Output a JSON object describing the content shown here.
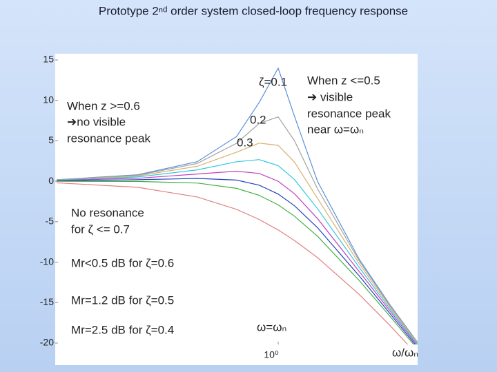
{
  "chart_data": {
    "type": "line",
    "title": "Prototype 2ⁿᵈ order system closed-loop frequency response",
    "x": [
      0.15,
      0.3,
      0.5,
      0.7,
      0.85,
      1,
      1.15,
      1.4,
      2,
      2.6,
      3.3
    ],
    "log_x": true,
    "xlim": [
      0.15,
      3.3
    ],
    "xticks": [
      {
        "value": 1,
        "label": "10⁰"
      }
    ],
    "ylim": [
      -20,
      15
    ],
    "yticks": [
      -20,
      -15,
      -10,
      -5,
      0,
      5,
      10,
      15
    ],
    "grid": false,
    "series": [
      {
        "color": "#5a8fd8",
        "values": [
          0.19,
          0.8,
          2.42,
          5.53,
          9.75,
          13.98,
          8.04,
          0.0,
          -9.62,
          -15.24,
          -19.92
        ]
      },
      {
        "color": "#a0a0a0",
        "values": [
          0.18,
          0.74,
          2.2,
          4.7,
          7.15,
          7.96,
          5.01,
          -0.92,
          -9.84,
          -15.35,
          -19.98
        ]
      },
      {
        "color": "#d8b070",
        "values": [
          0.16,
          0.65,
          1.85,
          3.6,
          4.72,
          4.44,
          2.37,
          -2.11,
          -10.19,
          -15.52,
          -20.07
        ]
      },
      {
        "color": "#30c8e0",
        "values": [
          0.13,
          0.53,
          1.41,
          2.41,
          2.68,
          1.94,
          0.22,
          -3.38,
          -10.63,
          -15.74,
          -20.2
        ]
      },
      {
        "color": "#c040c0",
        "values": [
          0.1,
          0.37,
          0.9,
          1.25,
          0.97,
          0.0,
          -1.54,
          -4.6,
          -11.14,
          -16.01,
          -20.36
        ]
      },
      {
        "color": "#2040c0",
        "values": [
          0.05,
          0.19,
          0.35,
          0.15,
          -0.48,
          -1.58,
          -3.03,
          -5.73,
          -11.69,
          -16.33,
          -20.55
        ]
      },
      {
        "color": "#40b040",
        "values": [
          0.0,
          -0.02,
          -0.22,
          -0.87,
          -1.74,
          -2.92,
          -4.31,
          -6.78,
          -12.26,
          -16.67,
          -20.76
        ]
      },
      {
        "color": "#e08080",
        "values": [
          -0.19,
          -0.75,
          -1.94,
          -3.46,
          -4.72,
          -6.02,
          -7.32,
          -9.43,
          -13.98,
          -17.8,
          -21.5
        ]
      }
    ],
    "annotations": [
      "ζ=0.1",
      "0.2",
      "0.3",
      "When z >=0.6",
      "➔no visible",
      "resonance peak",
      "When z <=0.5",
      "➔ visible",
      "resonance peak",
      "near ω=ωₙ",
      "No resonance",
      "for ζ <= 0.7",
      "Mr<0.5 dB for ζ=0.6",
      "Mr=1.2 dB for ζ=0.5",
      "Mr=2.5 dB for ζ=0.4",
      "ω=ωₙ",
      "ω/ωₙ"
    ]
  }
}
